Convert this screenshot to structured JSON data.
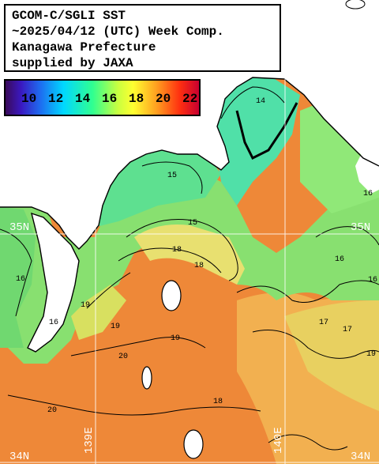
{
  "title": {
    "line1": "GCOM-C/SGLI SST",
    "line2": "~2025/04/12 (UTC) Week Comp.",
    "line3": "Kanagawa Prefecture",
    "line4": "supplied by JAXA"
  },
  "colorbar": {
    "labels": [
      "10",
      "12",
      "14",
      "16",
      "18",
      "20",
      "22"
    ]
  },
  "grid_labels": {
    "lat_35_left": "35N",
    "lat_35_right": "35N",
    "lat_34_left": "34N",
    "lat_34_right": "34N",
    "lon_139": "139E",
    "lon_140": "140E"
  },
  "contour_labels": [
    "15",
    "15",
    "14",
    "16",
    "16",
    "16",
    "16",
    "17",
    "18",
    "18",
    "18",
    "19",
    "19",
    "19",
    "20",
    "20",
    "17",
    "19",
    "16"
  ],
  "colors": {
    "land": "#ffffff",
    "coastline": "#000000",
    "gridline": "#ffffff"
  }
}
